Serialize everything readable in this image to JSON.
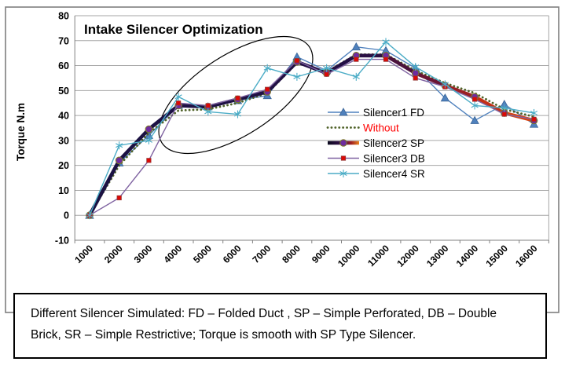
{
  "figure": {
    "title": "Intake Silencer Optimization",
    "y_axis_title": "Torque  N.m"
  },
  "chart_data": {
    "type": "line",
    "title": "Intake Silencer Optimization",
    "xlabel": "",
    "ylabel": "Torque  N.m",
    "ylim": [
      -10,
      80
    ],
    "y_ticks": [
      80,
      70,
      60,
      50,
      40,
      30,
      20,
      10,
      0,
      -10
    ],
    "grid": "horizontal",
    "legend_position": "inside-right",
    "annotation": {
      "type": "ellipse-highlight",
      "region": "torque plateau between 4000 and 8000 rpm"
    },
    "categories": [
      "1000",
      "2000",
      "3000",
      "4000",
      "5000",
      "6000",
      "7000",
      "8000",
      "9000",
      "10000",
      "11000",
      "12000",
      "13000",
      "14000",
      "15000",
      "16000"
    ],
    "series": [
      {
        "name": "Silencer1 FD",
        "marker": "triangle",
        "line": "solid",
        "color": "#4F81BD",
        "marker_fill": "#4F81BD",
        "marker_stroke": "#3A6496",
        "label_color": "#000000",
        "values": [
          0,
          21,
          32,
          44,
          43.5,
          46,
          48,
          63.5,
          58,
          67.5,
          66,
          59,
          47,
          38,
          44.5,
          36.5
        ]
      },
      {
        "name": "Without",
        "marker": "none",
        "line": "dotted",
        "color": "#4F6228",
        "label_color": "#FF0000",
        "values": [
          0,
          20,
          33,
          42,
          42.5,
          45,
          49,
          61,
          57.5,
          64.5,
          64.5,
          58,
          53,
          49,
          42.5,
          39.5
        ]
      },
      {
        "name": "Silencer2 SP",
        "marker": "circle",
        "line": "thick-gradient",
        "color": "#1B1243",
        "gradient_stops": [
          [
            0,
            "#1B1243"
          ],
          [
            0.62,
            "#241045"
          ],
          [
            0.78,
            "#701432"
          ],
          [
            0.88,
            "#BE2A16"
          ],
          [
            1,
            "#DF4E16"
          ]
        ],
        "marker_fill": "#6E2C9E",
        "marker_stroke": "#7C7C20",
        "label_color": "#000000",
        "values": [
          0,
          22,
          34.5,
          44,
          43.5,
          46.5,
          49.5,
          61.5,
          57,
          64,
          64,
          57,
          52,
          47.5,
          41,
          38
        ]
      },
      {
        "name": "Silencer3 DB",
        "marker": "square",
        "line": "solid",
        "color": "#8064A2",
        "marker_fill": "#DD0806",
        "marker_stroke": "#943634",
        "label_color": "#000000",
        "values": [
          0,
          7,
          22,
          45,
          44,
          47,
          50.5,
          62,
          56.5,
          62.5,
          62.5,
          55,
          51.5,
          46.5,
          40.5,
          38.5
        ]
      },
      {
        "name": "Silencer4 SR",
        "marker": "asterisk",
        "line": "solid",
        "color": "#4BACC6",
        "marker_stroke": "#4BACC6",
        "label_color": "#000000",
        "values": [
          0,
          28,
          30,
          47.5,
          41.5,
          40.5,
          59,
          55.5,
          59,
          55.5,
          69.5,
          59.5,
          52.5,
          44,
          43,
          41
        ]
      }
    ]
  },
  "caption": {
    "text": "Different Silencer Simulated: FD – Folded Duct , SP – Simple Perforated, DB – Double Brick, SR – Simple Restrictive; Torque is smooth with SP Type Silencer."
  }
}
